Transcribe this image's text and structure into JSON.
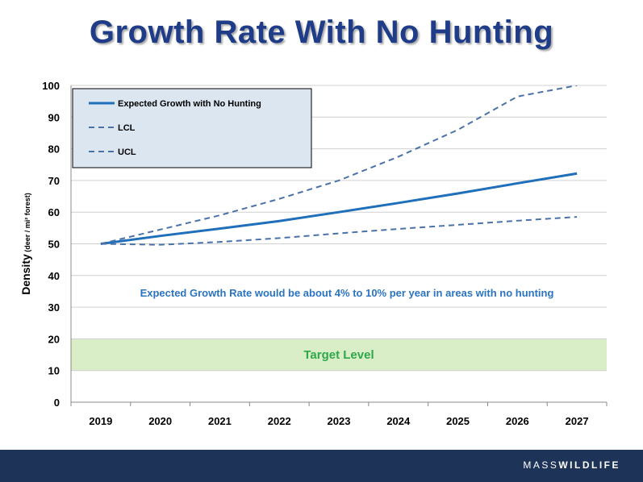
{
  "slide": {
    "title": "Growth Rate With No Hunting",
    "logo_thin": "MASS",
    "logo_bold": "WILDLIFE"
  },
  "chart_data": {
    "type": "line",
    "categories": [
      "2019",
      "2020",
      "2021",
      "2022",
      "2023",
      "2024",
      "2025",
      "2026",
      "2027"
    ],
    "ylabel_main": "Density",
    "ylabel_unit": "(deer / mi² forest)",
    "ylim": [
      0,
      100
    ],
    "yticks": [
      0,
      10,
      20,
      30,
      40,
      50,
      60,
      70,
      80,
      90,
      100
    ],
    "grid": true,
    "legend_position": "top-left",
    "series": [
      {
        "name": "Expected Growth with No Hunting",
        "style": "solid",
        "color": "#1f6fba",
        "values": [
          50,
          52.5,
          54.8,
          57.2,
          60,
          62.9,
          65.9,
          69.1,
          72.2
        ]
      },
      {
        "name": "LCL",
        "style": "dashed",
        "color": "#4a72a8",
        "values": [
          50,
          49.7,
          50.6,
          51.8,
          53.3,
          54.7,
          56,
          57.3,
          58.5
        ]
      },
      {
        "name": "UCL",
        "style": "dashed",
        "color": "#4a72a8",
        "values": [
          50,
          54.5,
          59,
          64.2,
          70,
          77.5,
          86,
          96.5,
          100
        ]
      }
    ],
    "target_band": {
      "from": 10,
      "to": 20,
      "label": "Target Level",
      "fill": "#d9edc6",
      "text_color": "#2ea84a"
    },
    "annotation": "Expected Growth Rate would be about 4% to 10% per year in areas with no hunting",
    "annotation_color": "#2a74c0"
  }
}
